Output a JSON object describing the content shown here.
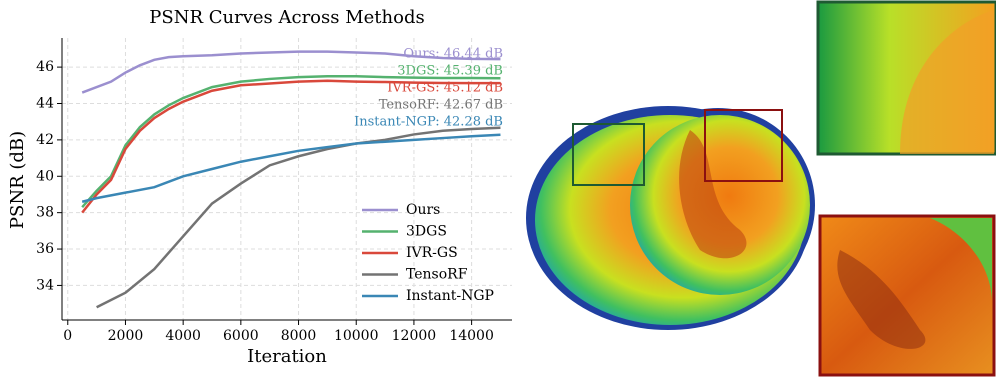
{
  "chart_data": {
    "type": "line",
    "title": "PSNR Curves Across Methods",
    "xlabel": "Iteration",
    "ylabel": "PSNR (dB)",
    "xlim": [
      -200,
      15400
    ],
    "ylim": [
      32.1,
      47.6
    ],
    "xticks": [
      0,
      2000,
      4000,
      6000,
      8000,
      10000,
      12000,
      14000
    ],
    "yticks": [
      34,
      36,
      38,
      40,
      42,
      44,
      46
    ],
    "grid": true,
    "legend": "lower right",
    "series": [
      {
        "name": "Ours",
        "color": "#9b8fcf",
        "x": [
          500,
          1500,
          2000,
          2500,
          3000,
          3500,
          4000,
          5000,
          6000,
          7000,
          8000,
          9000,
          10000,
          11000,
          12000,
          13000,
          14000,
          15000
        ],
        "values": [
          44.6,
          45.2,
          45.7,
          46.1,
          46.4,
          46.55,
          46.6,
          46.65,
          46.75,
          46.8,
          46.85,
          46.85,
          46.8,
          46.75,
          46.6,
          46.5,
          46.45,
          46.44
        ]
      },
      {
        "name": "3DGS",
        "color": "#55b26f",
        "x": [
          500,
          1000,
          1500,
          2000,
          2500,
          3000,
          3500,
          4000,
          5000,
          6000,
          7000,
          8000,
          9000,
          10000,
          11000,
          12000,
          13000,
          14000,
          15000
        ],
        "values": [
          38.3,
          39.2,
          40.0,
          41.7,
          42.7,
          43.4,
          43.9,
          44.3,
          44.9,
          45.2,
          45.35,
          45.45,
          45.5,
          45.5,
          45.45,
          45.42,
          45.4,
          45.4,
          45.39
        ]
      },
      {
        "name": "IVR-GS",
        "color": "#d9483b",
        "x": [
          500,
          1000,
          1500,
          2000,
          2500,
          3000,
          3500,
          4000,
          5000,
          6000,
          7000,
          8000,
          9000,
          10000,
          11000,
          12000,
          13000,
          14000,
          15000
        ],
        "values": [
          38.0,
          39.0,
          39.8,
          41.5,
          42.5,
          43.2,
          43.7,
          44.1,
          44.7,
          45.0,
          45.1,
          45.2,
          45.25,
          45.2,
          45.18,
          45.15,
          45.13,
          45.12,
          45.12
        ]
      },
      {
        "name": "TensoRF",
        "color": "#737373",
        "x": [
          1000,
          2000,
          3000,
          4000,
          5000,
          6000,
          7000,
          8000,
          9000,
          10000,
          11000,
          12000,
          13000,
          14000,
          15000
        ],
        "values": [
          32.8,
          33.6,
          34.9,
          36.7,
          38.5,
          39.6,
          40.6,
          41.1,
          41.5,
          41.8,
          42.0,
          42.3,
          42.5,
          42.6,
          42.67
        ]
      },
      {
        "name": "Instant-NGP",
        "color": "#3a87b5",
        "x": [
          500,
          1000,
          2000,
          3000,
          4000,
          5000,
          6000,
          7000,
          8000,
          9000,
          10000,
          11000,
          12000,
          13000,
          14000,
          15000
        ],
        "values": [
          38.6,
          38.8,
          39.1,
          39.4,
          40.0,
          40.4,
          40.8,
          41.1,
          41.4,
          41.6,
          41.8,
          41.9,
          42.0,
          42.1,
          42.2,
          42.28
        ]
      }
    ],
    "annotations": [
      "Ours: 46.44 dB",
      "3DGS: 45.39 dB",
      "IVR-GS: 45.12 dB",
      "TensoRF: 42.67 dB",
      "Instant-NGP: 42.28 dB"
    ]
  }
}
